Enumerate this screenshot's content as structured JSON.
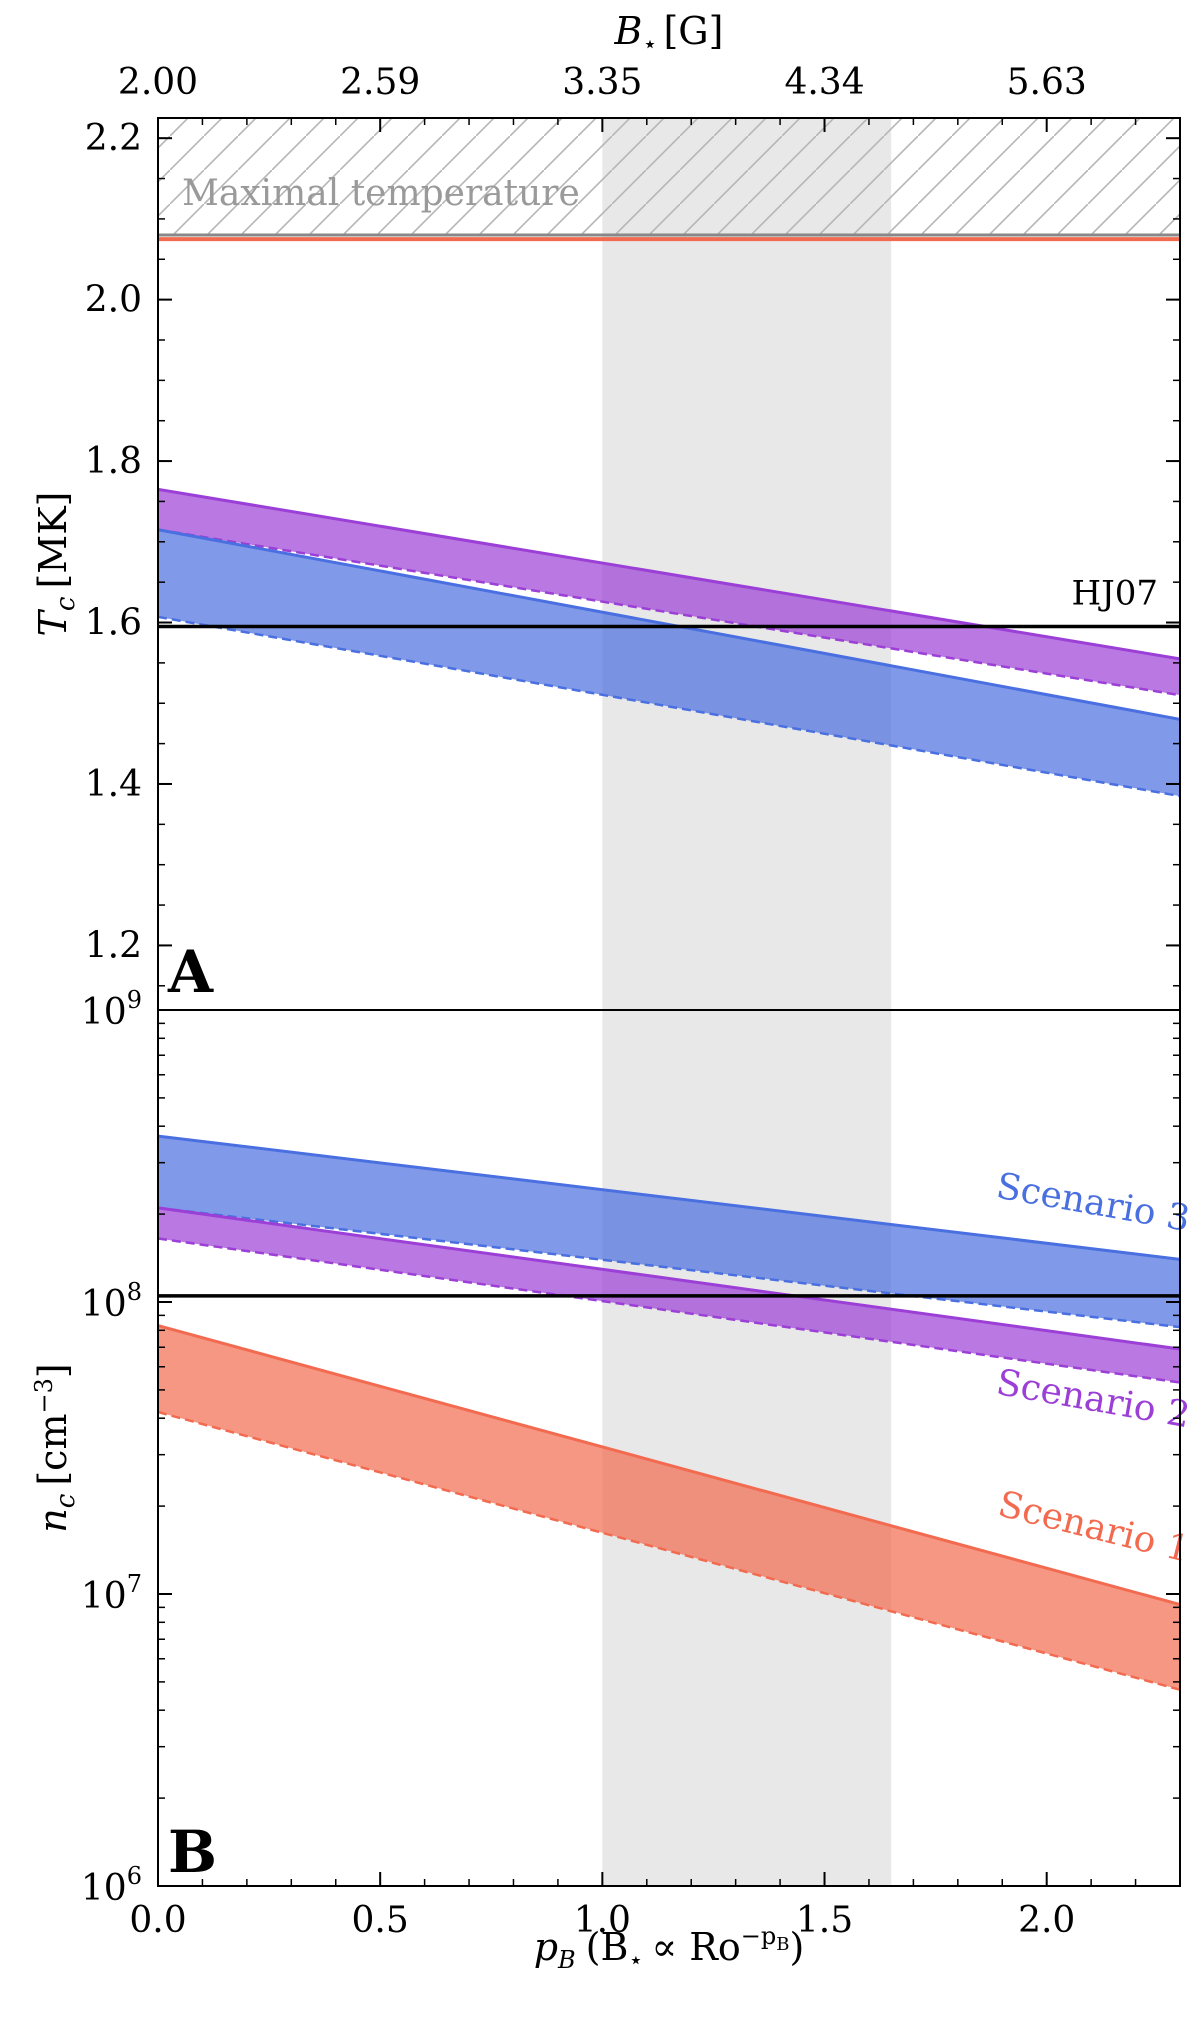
{
  "colors": {
    "scenario1": "#f26b50",
    "scenario2": "#9b3fd6",
    "scenario3": "#4a6fe0",
    "hatch": "#b5b5b5",
    "maxtemp_line": "#888888",
    "highlight": "#e8e8e8"
  },
  "chart_data": [
    {
      "type": "area",
      "panel_label": "A",
      "ylabel_var": "T",
      "ylabel_sub": "c",
      "ylabel_unit": "[MK]",
      "top_axis_var": "B",
      "top_axis_sub": "⋆",
      "top_axis_unit": "[G]",
      "top_ticks": [
        {
          "p": 0.0,
          "label": "2.00"
        },
        {
          "p": 0.5,
          "label": "2.59"
        },
        {
          "p": 1.0,
          "label": "3.35"
        },
        {
          "p": 1.5,
          "label": "4.34"
        },
        {
          "p": 2.0,
          "label": "5.63"
        }
      ],
      "xlim": [
        0.0,
        2.3
      ],
      "ylim": [
        1.12,
        2.225
      ],
      "yticks": [
        {
          "v": 1.2,
          "label": "1.2"
        },
        {
          "v": 1.4,
          "label": "1.4"
        },
        {
          "v": 1.6,
          "label": "1.6"
        },
        {
          "v": 1.8,
          "label": "1.8"
        },
        {
          "v": 2.0,
          "label": "2.0"
        },
        {
          "v": 2.2,
          "label": "2.2"
        }
      ],
      "highlight_range": [
        1.0,
        1.65
      ],
      "reference_line": {
        "value": 1.595,
        "label": "HJ07"
      },
      "max_temperature": {
        "value": 2.08,
        "label": "Maximal temperature"
      },
      "scenario1_line": 2.075,
      "series": [
        {
          "name": "Scenario 2",
          "color_key": "scenario2",
          "upper": [
            1.765,
            1.555
          ],
          "lower": [
            1.715,
            1.51
          ]
        },
        {
          "name": "Scenario 3",
          "color_key": "scenario3",
          "upper": [
            1.715,
            1.48
          ],
          "lower": [
            1.607,
            1.385
          ]
        }
      ]
    },
    {
      "type": "area",
      "panel_label": "B",
      "ylabel_var": "n",
      "ylabel_sub": "c",
      "ylabel_unit": "[cm",
      "ylabel_exp": "−3",
      "ylabel_close": "]",
      "scale": "log",
      "xlim": [
        0.0,
        2.3
      ],
      "ylim_log10": [
        6.0,
        9.0
      ],
      "yticks": [
        {
          "exp": 6,
          "base": "10",
          "sup": "6"
        },
        {
          "exp": 7,
          "base": "10",
          "sup": "7"
        },
        {
          "exp": 8,
          "base": "10",
          "sup": "8"
        },
        {
          "exp": 9,
          "base": "10",
          "sup": "9"
        }
      ],
      "xticks": [
        {
          "v": 0.0,
          "label": "0.0"
        },
        {
          "v": 0.5,
          "label": "0.5"
        },
        {
          "v": 1.0,
          "label": "1.0"
        },
        {
          "v": 1.5,
          "label": "1.5"
        },
        {
          "v": 2.0,
          "label": "2.0"
        }
      ],
      "xlabel_var": "p",
      "xlabel_sub": "B",
      "xlabel_rest": "(B",
      "xlabel_prop": "∝ Ro",
      "xlabel_exp": "−p",
      "xlabel_close": ")",
      "highlight_range": [
        1.0,
        1.65
      ],
      "reference_line": {
        "value": 105000000.0
      },
      "series": [
        {
          "name": "Scenario 3",
          "color_key": "scenario3",
          "upper": [
            370000000.0,
            140000000.0
          ],
          "lower": [
            210000000.0,
            82000000.0
          ],
          "label": "Scenario 3",
          "label_at": [
            2.1,
            200000000.0
          ],
          "label_angle": 10
        },
        {
          "name": "Scenario 2",
          "color_key": "scenario2",
          "upper": [
            210000000.0,
            69000000.0
          ],
          "lower": [
            165000000.0,
            53000000.0
          ],
          "label": "Scenario 2",
          "label_at": [
            2.1,
            42500000.0
          ],
          "label_angle": 10
        },
        {
          "name": "Scenario 1",
          "color_key": "scenario1",
          "upper": [
            83000000.0,
            9200000.0
          ],
          "lower": [
            42000000.0,
            4700000.0
          ],
          "label": "Scenario 1",
          "label_at": [
            2.1,
            15500000.0
          ],
          "label_angle": 14
        }
      ]
    }
  ]
}
